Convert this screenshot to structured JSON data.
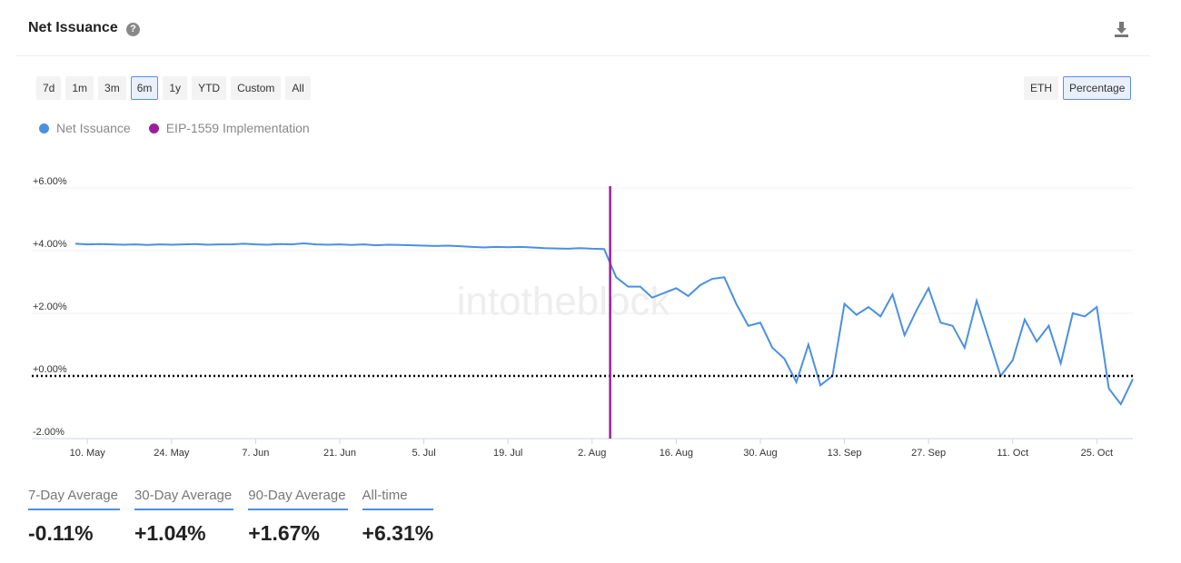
{
  "header": {
    "title": "Net Issuance"
  },
  "ranges": [
    "7d",
    "1m",
    "3m",
    "6m",
    "1y",
    "YTD",
    "Custom",
    "All"
  ],
  "units": [
    "ETH",
    "Percentage"
  ],
  "watermark": "intotheblock",
  "chart_data": {
    "type": "line",
    "categories": [
      null,
      "10. May",
      null,
      null,
      null,
      null,
      null,
      null,
      "24. May",
      null,
      null,
      null,
      null,
      null,
      null,
      "7. Jun",
      null,
      null,
      null,
      null,
      null,
      null,
      "21. Jun",
      null,
      null,
      null,
      null,
      null,
      null,
      "5. Jul",
      null,
      null,
      null,
      null,
      null,
      null,
      "19. Jul",
      null,
      null,
      null,
      null,
      null,
      null,
      "2. Aug",
      null,
      null,
      null,
      null,
      null,
      null,
      "16. Aug",
      null,
      null,
      null,
      null,
      null,
      null,
      "30. Aug",
      null,
      null,
      null,
      null,
      null,
      null,
      "13. Sep",
      null,
      null,
      null,
      null,
      null,
      null,
      "27. Sep",
      null,
      null,
      null,
      null,
      null,
      null,
      "11. Oct",
      null,
      null,
      null,
      null,
      null,
      null,
      "25. Oct",
      null,
      null,
      null
    ],
    "series": [
      {
        "name": "Net Issuance",
        "color": "#4a90e2",
        "values": [
          4.22,
          4.2,
          4.21,
          4.2,
          4.19,
          4.2,
          4.18,
          4.2,
          4.19,
          4.2,
          4.21,
          4.19,
          4.2,
          4.2,
          4.22,
          4.2,
          4.19,
          4.21,
          4.2,
          4.23,
          4.2,
          4.19,
          4.2,
          4.18,
          4.2,
          4.17,
          4.19,
          4.18,
          4.17,
          4.16,
          4.15,
          4.16,
          4.14,
          4.12,
          4.1,
          4.12,
          4.11,
          4.12,
          4.1,
          4.08,
          4.07,
          4.06,
          4.08,
          4.06,
          4.05,
          3.15,
          2.85,
          2.85,
          2.5,
          2.65,
          2.8,
          2.55,
          2.9,
          3.1,
          3.15,
          2.3,
          1.6,
          1.7,
          0.9,
          0.55,
          -0.2,
          1.0,
          -0.3,
          0.0,
          2.3,
          1.95,
          2.2,
          1.9,
          2.6,
          1.3,
          2.1,
          2.8,
          1.7,
          1.6,
          0.9,
          2.4,
          1.2,
          0.0,
          0.5,
          1.8,
          1.1,
          1.6,
          0.4,
          2.0,
          1.9,
          2.2,
          -0.4,
          -0.9,
          -0.1
        ]
      }
    ],
    "event": {
      "name": "EIP-1559 Implementation",
      "color": "#9b1f9b",
      "x": 44.5
    },
    "hline": 0,
    "ylim": [
      -2,
      6
    ],
    "yticks": [
      {
        "value": -2,
        "label": "-2.00%"
      },
      {
        "value": 0,
        "label": "+0.00%"
      },
      {
        "value": 2,
        "label": "+2.00%"
      },
      {
        "value": 4,
        "label": "+4.00%"
      },
      {
        "value": 6,
        "label": "+6.00%"
      }
    ],
    "grid": true
  },
  "stats": [
    {
      "label": "7-Day Average",
      "value": "-0.11%"
    },
    {
      "label": "30-Day Average",
      "value": "+1.04%"
    },
    {
      "label": "90-Day Average",
      "value": "+1.67%"
    },
    {
      "label": "All-time",
      "value": "+6.31%"
    }
  ]
}
